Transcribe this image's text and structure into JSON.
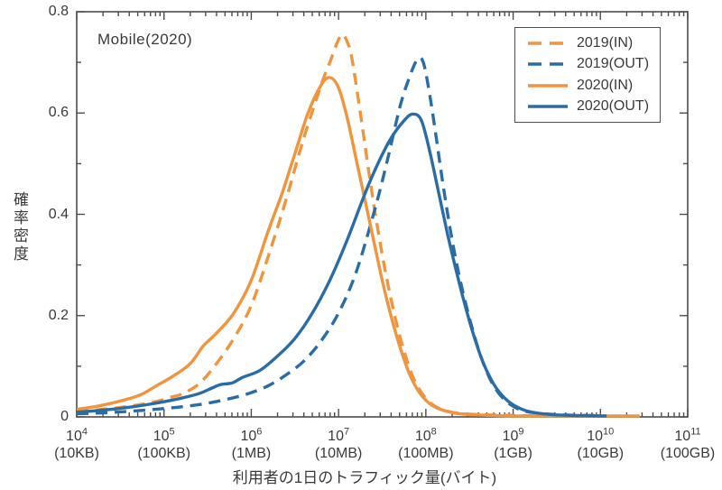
{
  "colors": {
    "orange": "#F0943D",
    "blue": "#2A6DA6",
    "axis": "#4D4D4D",
    "text": "#3A3A3A"
  },
  "chart_data": {
    "type": "line",
    "title": "Mobile(2020)",
    "xlabel": "利用者の1日のトラフィック量(バイト)",
    "ylabel": "確率密度",
    "x_scale": "log10",
    "x_range_log10": [
      4,
      11
    ],
    "ylim": [
      0,
      0.8
    ],
    "grid": false,
    "legend_position": "top-right",
    "y_ticks": [
      "0",
      "0.2",
      "0.4",
      "0.6",
      "0.8"
    ],
    "y_tick_values": [
      0,
      0.2,
      0.4,
      0.6,
      0.8
    ],
    "x_ticks": [
      {
        "power": 4,
        "bytes": "(10KB)"
      },
      {
        "power": 5,
        "bytes": "(100KB)"
      },
      {
        "power": 6,
        "bytes": "(1MB)"
      },
      {
        "power": 7,
        "bytes": "(10MB)"
      },
      {
        "power": 8,
        "bytes": "(100MB)"
      },
      {
        "power": 9,
        "bytes": "(1GB)"
      },
      {
        "power": 10,
        "bytes": "(10GB)"
      },
      {
        "power": 11,
        "bytes": "(100GB)"
      }
    ],
    "series": [
      {
        "name": "2019(IN)",
        "color": "#F0943D",
        "style": "dashed",
        "peak": {
          "x_log10": 7.05,
          "density": 0.755
        },
        "points": [
          [
            4.0,
            0.011
          ],
          [
            4.3,
            0.015
          ],
          [
            4.6,
            0.021
          ],
          [
            4.9,
            0.03
          ],
          [
            5.1,
            0.04
          ],
          [
            5.2,
            0.045
          ],
          [
            5.4,
            0.065
          ],
          [
            5.6,
            0.105
          ],
          [
            5.8,
            0.155
          ],
          [
            6.0,
            0.22
          ],
          [
            6.2,
            0.32
          ],
          [
            6.4,
            0.43
          ],
          [
            6.6,
            0.55
          ],
          [
            6.8,
            0.655
          ],
          [
            6.9,
            0.7
          ],
          [
            7.0,
            0.745
          ],
          [
            7.05,
            0.755
          ],
          [
            7.1,
            0.74
          ],
          [
            7.15,
            0.71
          ],
          [
            7.25,
            0.6
          ],
          [
            7.35,
            0.48
          ],
          [
            7.45,
            0.37
          ],
          [
            7.55,
            0.275
          ],
          [
            7.65,
            0.195
          ],
          [
            7.75,
            0.13
          ],
          [
            7.85,
            0.08
          ],
          [
            7.95,
            0.048
          ],
          [
            8.05,
            0.028
          ],
          [
            8.15,
            0.017
          ],
          [
            8.3,
            0.009
          ],
          [
            8.55,
            0.005
          ],
          [
            9.0,
            0.003
          ],
          [
            9.3,
            0.002
          ]
        ]
      },
      {
        "name": "2019(OUT)",
        "color": "#2A6DA6",
        "style": "dashed",
        "peak": {
          "x_log10": 7.9,
          "density": 0.705
        },
        "points": [
          [
            4.0,
            0.006
          ],
          [
            4.3,
            0.008
          ],
          [
            4.6,
            0.011
          ],
          [
            4.9,
            0.015
          ],
          [
            5.2,
            0.02
          ],
          [
            5.5,
            0.027
          ],
          [
            5.8,
            0.038
          ],
          [
            6.0,
            0.048
          ],
          [
            6.2,
            0.062
          ],
          [
            6.4,
            0.083
          ],
          [
            6.6,
            0.11
          ],
          [
            6.8,
            0.15
          ],
          [
            7.0,
            0.205
          ],
          [
            7.2,
            0.285
          ],
          [
            7.4,
            0.4
          ],
          [
            7.55,
            0.5
          ],
          [
            7.7,
            0.61
          ],
          [
            7.8,
            0.665
          ],
          [
            7.9,
            0.705
          ],
          [
            7.97,
            0.7
          ],
          [
            8.05,
            0.63
          ],
          [
            8.12,
            0.55
          ],
          [
            8.2,
            0.455
          ],
          [
            8.3,
            0.35
          ],
          [
            8.4,
            0.265
          ],
          [
            8.5,
            0.195
          ],
          [
            8.6,
            0.135
          ],
          [
            8.7,
            0.088
          ],
          [
            8.8,
            0.055
          ],
          [
            8.9,
            0.034
          ],
          [
            9.0,
            0.021
          ],
          [
            9.1,
            0.013
          ],
          [
            9.25,
            0.008
          ],
          [
            9.45,
            0.005
          ],
          [
            9.75,
            0.003
          ],
          [
            9.95,
            0.003
          ]
        ]
      },
      {
        "name": "2020(IN)",
        "color": "#F0943D",
        "style": "solid",
        "peak": {
          "x_log10": 6.9,
          "density": 0.67
        },
        "points": [
          [
            4.0,
            0.015
          ],
          [
            4.2,
            0.02
          ],
          [
            4.4,
            0.027
          ],
          [
            4.6,
            0.036
          ],
          [
            4.75,
            0.045
          ],
          [
            4.9,
            0.06
          ],
          [
            5.1,
            0.08
          ],
          [
            5.3,
            0.105
          ],
          [
            5.45,
            0.14
          ],
          [
            5.6,
            0.165
          ],
          [
            5.8,
            0.205
          ],
          [
            6.0,
            0.27
          ],
          [
            6.2,
            0.37
          ],
          [
            6.35,
            0.44
          ],
          [
            6.5,
            0.52
          ],
          [
            6.65,
            0.6
          ],
          [
            6.8,
            0.655
          ],
          [
            6.9,
            0.67
          ],
          [
            7.0,
            0.65
          ],
          [
            7.1,
            0.59
          ],
          [
            7.2,
            0.51
          ],
          [
            7.3,
            0.43
          ],
          [
            7.4,
            0.35
          ],
          [
            7.5,
            0.27
          ],
          [
            7.6,
            0.2
          ],
          [
            7.7,
            0.14
          ],
          [
            7.8,
            0.09
          ],
          [
            7.9,
            0.055
          ],
          [
            8.0,
            0.033
          ],
          [
            8.1,
            0.02
          ],
          [
            8.2,
            0.013
          ],
          [
            8.35,
            0.007
          ],
          [
            8.6,
            0.004
          ],
          [
            9.0,
            0.002
          ],
          [
            9.6,
            0.002
          ],
          [
            10.45,
            0.002
          ]
        ]
      },
      {
        "name": "2020(OUT)",
        "color": "#2A6DA6",
        "style": "solid",
        "peak": {
          "x_log10": 7.85,
          "density": 0.6
        },
        "points": [
          [
            4.0,
            0.009
          ],
          [
            4.2,
            0.012
          ],
          [
            4.4,
            0.015
          ],
          [
            4.6,
            0.019
          ],
          [
            4.8,
            0.024
          ],
          [
            5.0,
            0.03
          ],
          [
            5.2,
            0.037
          ],
          [
            5.4,
            0.046
          ],
          [
            5.55,
            0.057
          ],
          [
            5.65,
            0.064
          ],
          [
            5.78,
            0.067
          ],
          [
            5.9,
            0.078
          ],
          [
            6.1,
            0.092
          ],
          [
            6.3,
            0.12
          ],
          [
            6.5,
            0.155
          ],
          [
            6.7,
            0.205
          ],
          [
            6.9,
            0.27
          ],
          [
            7.1,
            0.35
          ],
          [
            7.3,
            0.44
          ],
          [
            7.45,
            0.5
          ],
          [
            7.6,
            0.55
          ],
          [
            7.75,
            0.585
          ],
          [
            7.85,
            0.598
          ],
          [
            7.95,
            0.585
          ],
          [
            8.05,
            0.52
          ],
          [
            8.15,
            0.44
          ],
          [
            8.25,
            0.36
          ],
          [
            8.36,
            0.28
          ],
          [
            8.45,
            0.22
          ],
          [
            8.55,
            0.16
          ],
          [
            8.65,
            0.11
          ],
          [
            8.75,
            0.073
          ],
          [
            8.85,
            0.047
          ],
          [
            8.95,
            0.03
          ],
          [
            9.05,
            0.019
          ],
          [
            9.15,
            0.012
          ],
          [
            9.3,
            0.007
          ],
          [
            9.5,
            0.004
          ],
          [
            9.8,
            0.0025
          ],
          [
            10.07,
            0.002
          ]
        ]
      }
    ]
  }
}
